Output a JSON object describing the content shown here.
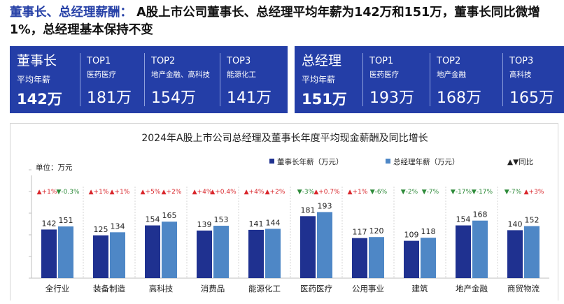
{
  "headline": {
    "accent": "董事长、总经理薪酬：",
    "text": "A股上市公司董事长、总经理平均年薪为142万和151万，董事长同比微增1%，总经理基本保持不变"
  },
  "panels": [
    {
      "title": "董事长",
      "subtitle": "平均年薪",
      "value": "142万",
      "tops": [
        {
          "rank": "TOP1",
          "industry": "医药医疗",
          "value": "181万"
        },
        {
          "rank": "TOP2",
          "industry": "地产金融、高科技",
          "value": "154万"
        },
        {
          "rank": "TOP3",
          "industry": "能源化工",
          "value": "141万"
        }
      ]
    },
    {
      "title": "总经理",
      "subtitle": "平均年薪",
      "value": "151万",
      "tops": [
        {
          "rank": "TOP1",
          "industry": "医药医疗",
          "value": "193万"
        },
        {
          "rank": "TOP2",
          "industry": "地产金融",
          "value": "168万"
        },
        {
          "rank": "TOP3",
          "industry": "高科技",
          "value": "165万"
        }
      ]
    }
  ],
  "chart_data": {
    "type": "bar",
    "title": "2024年A股上市公司总经理及董事长年度平均现金薪酬及同比增长",
    "unit_label": "单位：万元",
    "yoy_legend_label": "▲▼同比",
    "categories": [
      "全行业",
      "装备制造",
      "高科技",
      "消费品",
      "能源化工",
      "医药医疗",
      "公用事业",
      "建筑",
      "地产金融",
      "商贸物流"
    ],
    "series": [
      {
        "name": "董事长年薪（万元）",
        "color": "#1f3190",
        "values": [
          142,
          125,
          154,
          139,
          141,
          181,
          117,
          109,
          154,
          140
        ],
        "yoy": [
          "▲+1%",
          "▲+1%",
          "▲+5%",
          "▲+4%",
          "▲+4%",
          "▼-3%",
          "▲+1%",
          "▼-2%",
          "▼-17%",
          "▼-7%"
        ]
      },
      {
        "name": "总经理年薪（万元）",
        "color": "#4e87c6",
        "values": [
          151,
          134,
          165,
          153,
          144,
          193,
          120,
          118,
          168,
          152
        ],
        "yoy": [
          "▼-0.3%",
          "▲+1%",
          "▲+2%",
          "▲+0.4%",
          "▲+2%",
          "▲+0.7%",
          "▼-6%",
          "▼-7%",
          "▼-17%",
          "▲+3%"
        ]
      }
    ],
    "up_color": "#d9262b",
    "down_color": "#2e8b3a",
    "grid": false,
    "legend_position": "top-right"
  }
}
